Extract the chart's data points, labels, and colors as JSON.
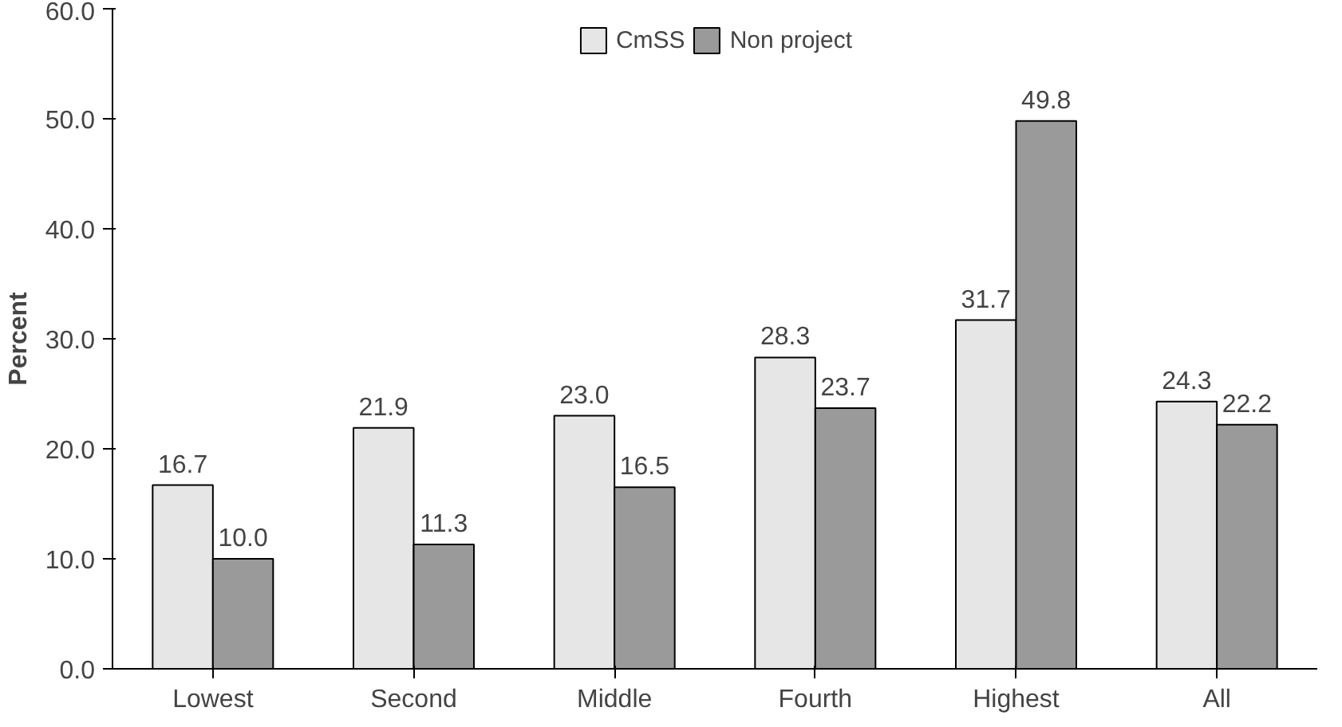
{
  "chart_data": {
    "type": "bar",
    "ylabel": "Percent",
    "categories": [
      "Lowest",
      "Second",
      "Middle",
      "Fourth",
      "Highest",
      "All"
    ],
    "series": [
      {
        "name": "CmSS",
        "color": "#e6e6e6",
        "values": [
          16.7,
          21.9,
          23.0,
          28.3,
          31.7,
          24.3
        ],
        "value_labels": [
          "16.7",
          "21.9",
          "23.0",
          "28.3",
          "31.7",
          "24.3"
        ]
      },
      {
        "name": "Non project",
        "color": "#9a9a9a",
        "values": [
          10.0,
          11.3,
          16.5,
          23.7,
          49.8,
          22.2
        ],
        "value_labels": [
          "10.0",
          "11.3",
          "16.5",
          "23.7",
          "49.8",
          "22.2"
        ]
      }
    ],
    "ylim": [
      0,
      60
    ],
    "yticks": [
      {
        "value": 0,
        "label": "0.0"
      },
      {
        "value": 10,
        "label": "10.0"
      },
      {
        "value": 20,
        "label": "20.0"
      },
      {
        "value": 30,
        "label": "30.0"
      },
      {
        "value": 40,
        "label": "40.0"
      },
      {
        "value": 50,
        "label": "50.0"
      },
      {
        "value": 60,
        "label": "60.0"
      }
    ],
    "legend": "top",
    "grid": false
  }
}
